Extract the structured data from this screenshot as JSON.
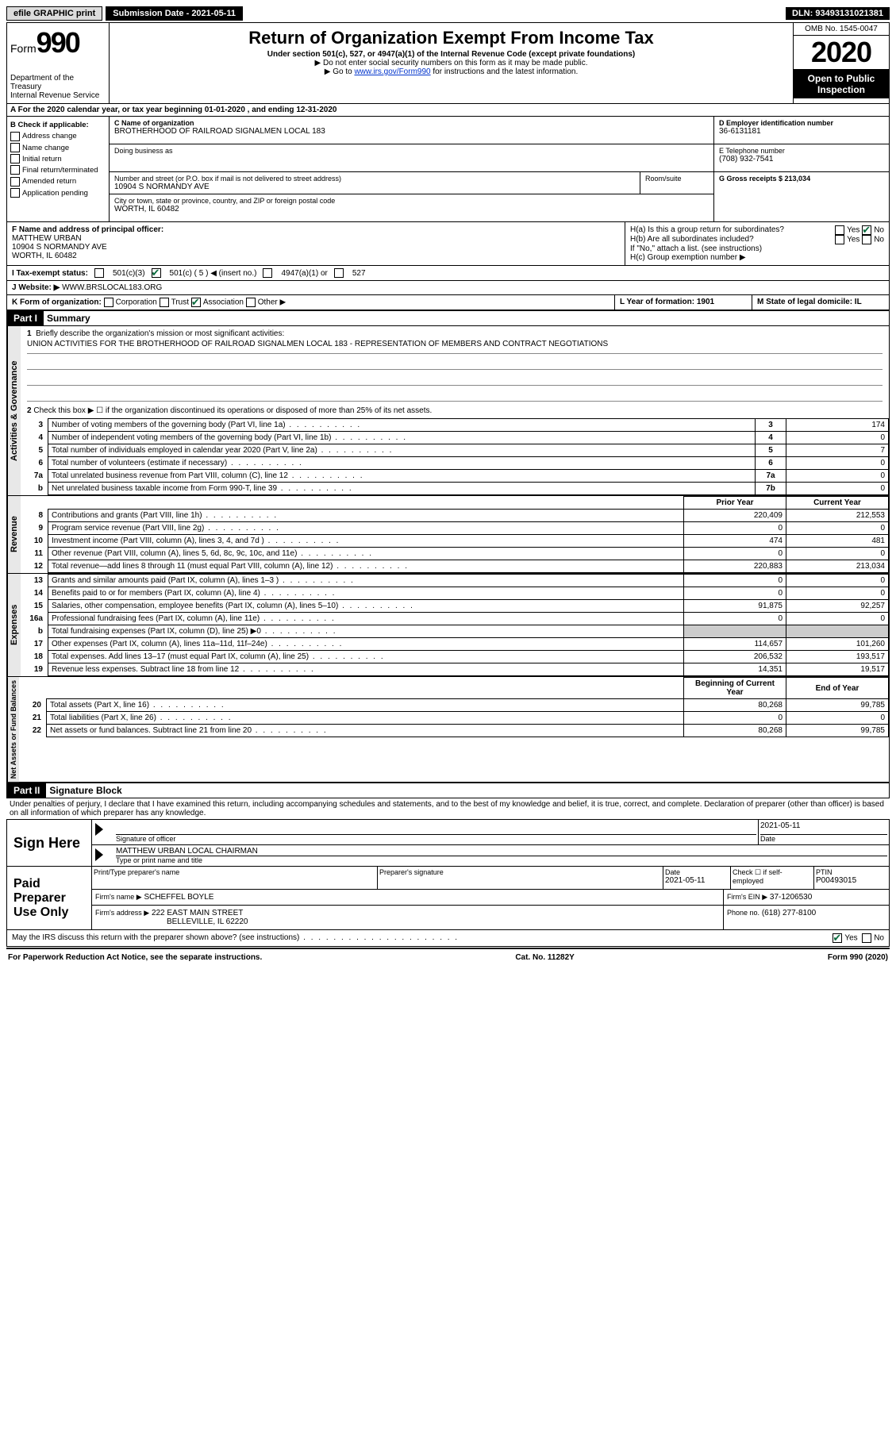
{
  "topbar": {
    "efile": "efile GRAPHIC print",
    "submission_label": "Submission Date - 2021-05-11",
    "dln": "DLN: 93493131021381"
  },
  "header": {
    "form_word": "Form",
    "form_num": "990",
    "dept": "Department of the Treasury\nInternal Revenue Service",
    "title": "Return of Organization Exempt From Income Tax",
    "subtitle": "Under section 501(c), 527, or 4947(a)(1) of the Internal Revenue Code (except private foundations)",
    "note1": "▶ Do not enter social security numbers on this form as it may be made public.",
    "note2_pre": "▶ Go to ",
    "note2_link": "www.irs.gov/Form990",
    "note2_post": " for instructions and the latest information.",
    "omb": "OMB No. 1545-0047",
    "year": "2020",
    "open": "Open to Public Inspection"
  },
  "line_a": "A For the 2020 calendar year, or tax year beginning 01-01-2020   , and ending 12-31-2020",
  "section_b": {
    "header": "B Check if applicable:",
    "items": [
      "Address change",
      "Name change",
      "Initial return",
      "Final return/terminated",
      "Amended return",
      "Application pending"
    ]
  },
  "section_c": {
    "name_label": "C Name of organization",
    "name": "BROTHERHOOD OF RAILROAD SIGNALMEN LOCAL 183",
    "dba_label": "Doing business as",
    "addr_label": "Number and street (or P.O. box if mail is not delivered to street address)",
    "room_label": "Room/suite",
    "addr": "10904 S NORMANDY AVE",
    "city_label": "City or town, state or province, country, and ZIP or foreign postal code",
    "city": "WORTH, IL  60482"
  },
  "section_d": {
    "ein_label": "D Employer identification number",
    "ein": "36-6131181",
    "phone_label": "E Telephone number",
    "phone": "(708) 932-7541",
    "gross_label": "G Gross receipts $ 213,034"
  },
  "section_f": {
    "label": "F Name and address of principal officer:",
    "name": "MATTHEW URBAN",
    "addr1": "10904 S NORMANDY AVE",
    "addr2": "WORTH, IL  60482"
  },
  "section_h": {
    "a_label": "H(a)  Is this a group return for subordinates?",
    "b_label": "H(b)  Are all subordinates included?",
    "b_note": "If \"No,\" attach a list. (see instructions)",
    "c_label": "H(c)  Group exemption number ▶",
    "yes": "Yes",
    "no": "No"
  },
  "section_i": {
    "label": "I   Tax-exempt status:",
    "opt1": "501(c)(3)",
    "opt2": "501(c) ( 5 ) ◀ (insert no.)",
    "opt3": "4947(a)(1) or",
    "opt4": "527"
  },
  "section_j": {
    "label": "J   Website: ▶",
    "value": "WWW.BRSLOCAL183.ORG"
  },
  "section_k": {
    "label": "K Form of organization:",
    "opts": [
      "Corporation",
      "Trust",
      "Association",
      "Other ▶"
    ],
    "l": "L Year of formation: 1901",
    "m": "M State of legal domicile: IL"
  },
  "part1": {
    "header": "Part I",
    "title": "Summary",
    "q1_label": "1",
    "q1_text": "Briefly describe the organization's mission or most significant activities:",
    "q1_answer": "UNION ACTIVITIES FOR THE BROTHERHOOD OF RAILROAD SIGNALMEN LOCAL 183 - REPRESENTATION OF MEMBERS AND CONTRACT NEGOTIATIONS",
    "q2": "Check this box ▶ ☐  if the organization discontinued its operations or disposed of more than 25% of its net assets.",
    "gov_lines": [
      {
        "n": "3",
        "t": "Number of voting members of the governing body (Part VI, line 1a)",
        "box": "3",
        "v": "174"
      },
      {
        "n": "4",
        "t": "Number of independent voting members of the governing body (Part VI, line 1b)",
        "box": "4",
        "v": "0"
      },
      {
        "n": "5",
        "t": "Total number of individuals employed in calendar year 2020 (Part V, line 2a)",
        "box": "5",
        "v": "7"
      },
      {
        "n": "6",
        "t": "Total number of volunteers (estimate if necessary)",
        "box": "6",
        "v": "0"
      },
      {
        "n": "7a",
        "t": "Total unrelated business revenue from Part VIII, column (C), line 12",
        "box": "7a",
        "v": "0"
      },
      {
        "n": "b",
        "t": "Net unrelated business taxable income from Form 990-T, line 39",
        "box": "7b",
        "v": "0"
      }
    ],
    "col_prior": "Prior Year",
    "col_current": "Current Year",
    "rev_lines": [
      {
        "n": "8",
        "t": "Contributions and grants (Part VIII, line 1h)",
        "p": "220,409",
        "c": "212,553"
      },
      {
        "n": "9",
        "t": "Program service revenue (Part VIII, line 2g)",
        "p": "0",
        "c": "0"
      },
      {
        "n": "10",
        "t": "Investment income (Part VIII, column (A), lines 3, 4, and 7d )",
        "p": "474",
        "c": "481"
      },
      {
        "n": "11",
        "t": "Other revenue (Part VIII, column (A), lines 5, 6d, 8c, 9c, 10c, and 11e)",
        "p": "0",
        "c": "0"
      },
      {
        "n": "12",
        "t": "Total revenue—add lines 8 through 11 (must equal Part VIII, column (A), line 12)",
        "p": "220,883",
        "c": "213,034"
      }
    ],
    "exp_lines": [
      {
        "n": "13",
        "t": "Grants and similar amounts paid (Part IX, column (A), lines 1–3 )",
        "p": "0",
        "c": "0"
      },
      {
        "n": "14",
        "t": "Benefits paid to or for members (Part IX, column (A), line 4)",
        "p": "0",
        "c": "0"
      },
      {
        "n": "15",
        "t": "Salaries, other compensation, employee benefits (Part IX, column (A), lines 5–10)",
        "p": "91,875",
        "c": "92,257"
      },
      {
        "n": "16a",
        "t": "Professional fundraising fees (Part IX, column (A), line 11e)",
        "p": "0",
        "c": "0"
      },
      {
        "n": "b",
        "t": "Total fundraising expenses (Part IX, column (D), line 25) ▶0",
        "p": "",
        "c": "",
        "shaded": true
      },
      {
        "n": "17",
        "t": "Other expenses (Part IX, column (A), lines 11a–11d, 11f–24e)",
        "p": "114,657",
        "c": "101,260"
      },
      {
        "n": "18",
        "t": "Total expenses. Add lines 13–17 (must equal Part IX, column (A), line 25)",
        "p": "206,532",
        "c": "193,517"
      },
      {
        "n": "19",
        "t": "Revenue less expenses. Subtract line 18 from line 12",
        "p": "14,351",
        "c": "19,517"
      }
    ],
    "col_begin": "Beginning of Current Year",
    "col_end": "End of Year",
    "net_lines": [
      {
        "n": "20",
        "t": "Total assets (Part X, line 16)",
        "p": "80,268",
        "c": "99,785"
      },
      {
        "n": "21",
        "t": "Total liabilities (Part X, line 26)",
        "p": "0",
        "c": "0"
      },
      {
        "n": "22",
        "t": "Net assets or fund balances. Subtract line 21 from line 20",
        "p": "80,268",
        "c": "99,785"
      }
    ],
    "vlabel_gov": "Activities & Governance",
    "vlabel_rev": "Revenue",
    "vlabel_exp": "Expenses",
    "vlabel_net": "Net Assets or Fund Balances"
  },
  "part2": {
    "header": "Part II",
    "title": "Signature Block",
    "declaration": "Under penalties of perjury, I declare that I have examined this return, including accompanying schedules and statements, and to the best of my knowledge and belief, it is true, correct, and complete. Declaration of preparer (other than officer) is based on all information of which preparer has any knowledge.",
    "sign_here": "Sign Here",
    "sig_officer": "Signature of officer",
    "sig_date": "Date",
    "sig_date_val": "2021-05-11",
    "officer_name": "MATTHEW URBAN  LOCAL CHAIRMAN",
    "type_name": "Type or print name and title",
    "paid": "Paid Preparer Use Only",
    "prep_name_label": "Print/Type preparer's name",
    "prep_sig_label": "Preparer's signature",
    "prep_date_label": "Date",
    "prep_date_val": "2021-05-11",
    "check_self": "Check ☐ if self-employed",
    "ptin_label": "PTIN",
    "ptin": "P00493015",
    "firm_name_label": "Firm's name    ▶",
    "firm_name": "SCHEFFEL BOYLE",
    "firm_ein_label": "Firm's EIN ▶",
    "firm_ein": "37-1206530",
    "firm_addr_label": "Firm's address ▶",
    "firm_addr": "222 EAST MAIN STREET",
    "firm_city": "BELLEVILLE, IL  62220",
    "firm_phone_label": "Phone no.",
    "firm_phone": "(618) 277-8100",
    "discuss": "May the IRS discuss this return with the preparer shown above? (see instructions)",
    "yes": "Yes",
    "no": "No"
  },
  "footer": {
    "left": "For Paperwork Reduction Act Notice, see the separate instructions.",
    "mid": "Cat. No. 11282Y",
    "right": "Form 990 (2020)"
  }
}
